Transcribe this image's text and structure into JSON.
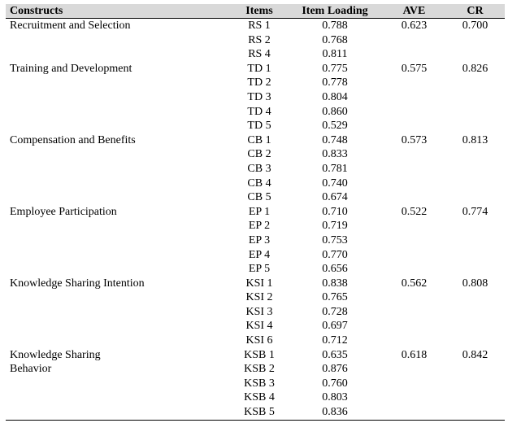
{
  "headers": {
    "constructs": "Constructs",
    "items": "Items",
    "loading": "Item Loading",
    "ave": "AVE",
    "cr": "CR"
  },
  "groups": [
    {
      "name": "Recruitment and Selection",
      "ave": "0.623",
      "cr": "0.700",
      "items": [
        [
          "RS 1",
          "0.788"
        ],
        [
          "RS 2",
          "0.768"
        ],
        [
          "RS 4",
          "0.811"
        ]
      ]
    },
    {
      "name": "Training and Development",
      "ave": "0.575",
      "cr": "0.826",
      "items": [
        [
          "TD 1",
          "0.775"
        ],
        [
          "TD 2",
          "0.778"
        ],
        [
          "TD 3",
          "0.804"
        ],
        [
          "TD 4",
          "0.860"
        ],
        [
          "TD 5",
          "0.529"
        ]
      ]
    },
    {
      "name": "Compensation and Benefits",
      "ave": "0.573",
      "cr": "0.813",
      "items": [
        [
          "CB 1",
          "0.748"
        ],
        [
          "CB 2",
          "0.833"
        ],
        [
          "CB 3",
          "0.781"
        ],
        [
          "CB 4",
          "0.740"
        ],
        [
          "CB 5",
          "0.674"
        ]
      ]
    },
    {
      "name": "Employee Participation",
      "ave": "0.522",
      "cr": "0.774",
      "items": [
        [
          "EP 1",
          "0.710"
        ],
        [
          "EP 2",
          "0.719"
        ],
        [
          "EP 3",
          "0.753"
        ],
        [
          "EP 4",
          "0.770"
        ],
        [
          "EP 5",
          "0.656"
        ]
      ]
    },
    {
      "name": "Knowledge Sharing Intention",
      "ave": "0.562",
      "cr": "0.808",
      "items": [
        [
          "KSI 1",
          "0.838"
        ],
        [
          "KSI 2",
          "0.765"
        ],
        [
          "KSI 3",
          "0.728"
        ],
        [
          "KSI 4",
          "0.697"
        ],
        [
          "KSI 6",
          "0.712"
        ]
      ]
    },
    {
      "name": "Knowledge Sharing Behavior",
      "name_lines": [
        "Knowledge Sharing",
        "Behavior"
      ],
      "ave": "0.618",
      "cr": "0.842",
      "items": [
        [
          "KSB 1",
          "0.635"
        ],
        [
          "KSB 2",
          "0.876"
        ],
        [
          "KSB 3",
          "0.760"
        ],
        [
          "KSB 4",
          "0.803"
        ],
        [
          "KSB 5",
          "0.836"
        ]
      ]
    }
  ]
}
